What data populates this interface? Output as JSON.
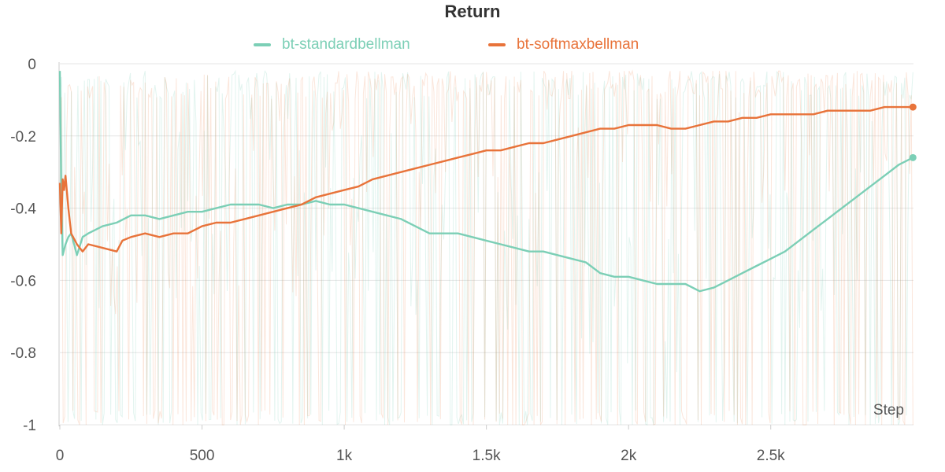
{
  "chart_data": {
    "type": "line",
    "title": "Return",
    "xlabel": "Step",
    "ylabel": "",
    "xlim": [
      0,
      3000
    ],
    "ylim": [
      -1,
      0
    ],
    "x_ticks": [
      0,
      500,
      1000,
      1500,
      2000,
      2500
    ],
    "x_tick_labels": [
      "0",
      "500",
      "1k",
      "1.5k",
      "2k",
      "2.5k"
    ],
    "y_ticks": [
      0,
      -0.2,
      -0.4,
      -0.6,
      -0.8,
      -1
    ],
    "y_tick_labels": [
      "0",
      "-0.2",
      "-0.4",
      "-0.6",
      "-0.8",
      "-1"
    ],
    "grid": true,
    "legend_position": "top-center",
    "series": [
      {
        "name": "bt-standardbellman",
        "color": "#7ccfb6",
        "x": [
          0,
          5,
          10,
          20,
          30,
          40,
          50,
          60,
          80,
          100,
          150,
          200,
          250,
          300,
          350,
          400,
          450,
          500,
          550,
          600,
          650,
          700,
          750,
          800,
          850,
          900,
          950,
          1000,
          1050,
          1100,
          1150,
          1200,
          1250,
          1300,
          1350,
          1400,
          1450,
          1500,
          1550,
          1600,
          1650,
          1700,
          1750,
          1800,
          1850,
          1900,
          1950,
          2000,
          2050,
          2100,
          2150,
          2200,
          2250,
          2300,
          2350,
          2400,
          2450,
          2500,
          2550,
          2600,
          2650,
          2700,
          2750,
          2800,
          2850,
          2900,
          2950,
          3000
        ],
        "values": [
          -0.02,
          -0.35,
          -0.53,
          -0.5,
          -0.48,
          -0.47,
          -0.5,
          -0.53,
          -0.48,
          -0.47,
          -0.45,
          -0.44,
          -0.42,
          -0.42,
          -0.43,
          -0.42,
          -0.41,
          -0.41,
          -0.4,
          -0.39,
          -0.39,
          -0.39,
          -0.4,
          -0.39,
          -0.39,
          -0.38,
          -0.39,
          -0.39,
          -0.4,
          -0.41,
          -0.42,
          -0.43,
          -0.45,
          -0.47,
          -0.47,
          -0.47,
          -0.48,
          -0.49,
          -0.5,
          -0.51,
          -0.52,
          -0.52,
          -0.53,
          -0.54,
          -0.55,
          -0.58,
          -0.59,
          -0.59,
          -0.6,
          -0.61,
          -0.61,
          -0.61,
          -0.63,
          -0.62,
          -0.6,
          -0.58,
          -0.56,
          -0.54,
          -0.52,
          -0.49,
          -0.46,
          -0.43,
          -0.4,
          -0.37,
          -0.34,
          -0.31,
          -0.28,
          -0.26
        ]
      },
      {
        "name": "bt-softmaxbellman",
        "color": "#e8733a",
        "x": [
          0,
          5,
          10,
          15,
          20,
          30,
          40,
          60,
          80,
          100,
          150,
          200,
          220,
          250,
          300,
          350,
          400,
          450,
          500,
          550,
          600,
          650,
          700,
          750,
          800,
          850,
          900,
          950,
          1000,
          1050,
          1100,
          1150,
          1200,
          1250,
          1300,
          1350,
          1400,
          1450,
          1500,
          1550,
          1600,
          1650,
          1700,
          1750,
          1800,
          1850,
          1900,
          1950,
          2000,
          2050,
          2100,
          2150,
          2200,
          2250,
          2300,
          2350,
          2400,
          2450,
          2500,
          2550,
          2600,
          2650,
          2700,
          2750,
          2800,
          2850,
          2900,
          2950,
          3000
        ],
        "values": [
          -0.33,
          -0.47,
          -0.32,
          -0.35,
          -0.31,
          -0.4,
          -0.47,
          -0.5,
          -0.52,
          -0.5,
          -0.51,
          -0.52,
          -0.49,
          -0.48,
          -0.47,
          -0.48,
          -0.47,
          -0.47,
          -0.45,
          -0.44,
          -0.44,
          -0.43,
          -0.42,
          -0.41,
          -0.4,
          -0.39,
          -0.37,
          -0.36,
          -0.35,
          -0.34,
          -0.32,
          -0.31,
          -0.3,
          -0.29,
          -0.28,
          -0.27,
          -0.26,
          -0.25,
          -0.24,
          -0.24,
          -0.23,
          -0.22,
          -0.22,
          -0.21,
          -0.2,
          -0.19,
          -0.18,
          -0.18,
          -0.17,
          -0.17,
          -0.17,
          -0.18,
          -0.18,
          -0.17,
          -0.16,
          -0.16,
          -0.15,
          -0.15,
          -0.14,
          -0.14,
          -0.14,
          -0.14,
          -0.13,
          -0.13,
          -0.13,
          -0.13,
          -0.12,
          -0.12,
          -0.12
        ]
      }
    ]
  }
}
